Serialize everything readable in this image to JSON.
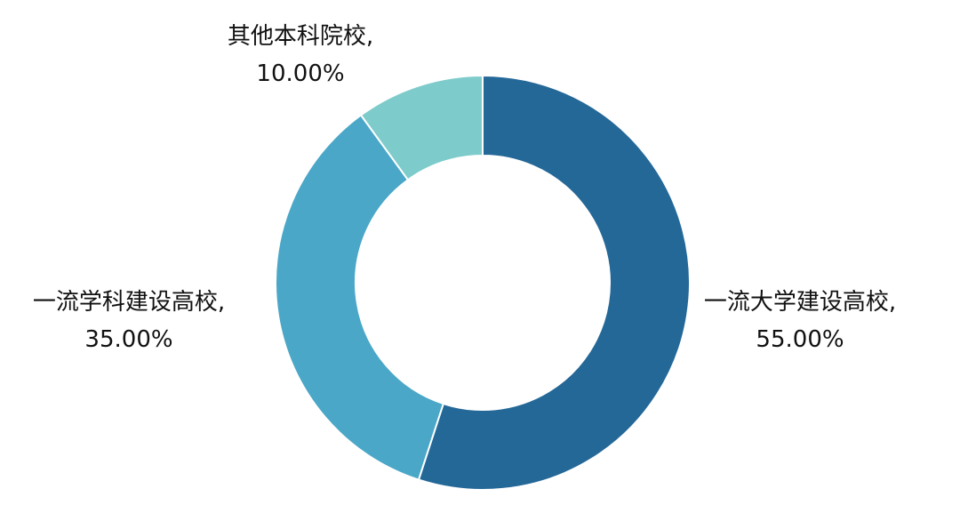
{
  "chart_data": {
    "type": "donut",
    "values": [
      55,
      35,
      10
    ],
    "value_labels": [
      "一流大学建设高校, 55.00%",
      "一流学科建设高校, 35.00%",
      "其他本科院校, 10.00%"
    ],
    "colors": [
      "#246898",
      "#4aa7c7",
      "#7ecbcb"
    ]
  }
}
